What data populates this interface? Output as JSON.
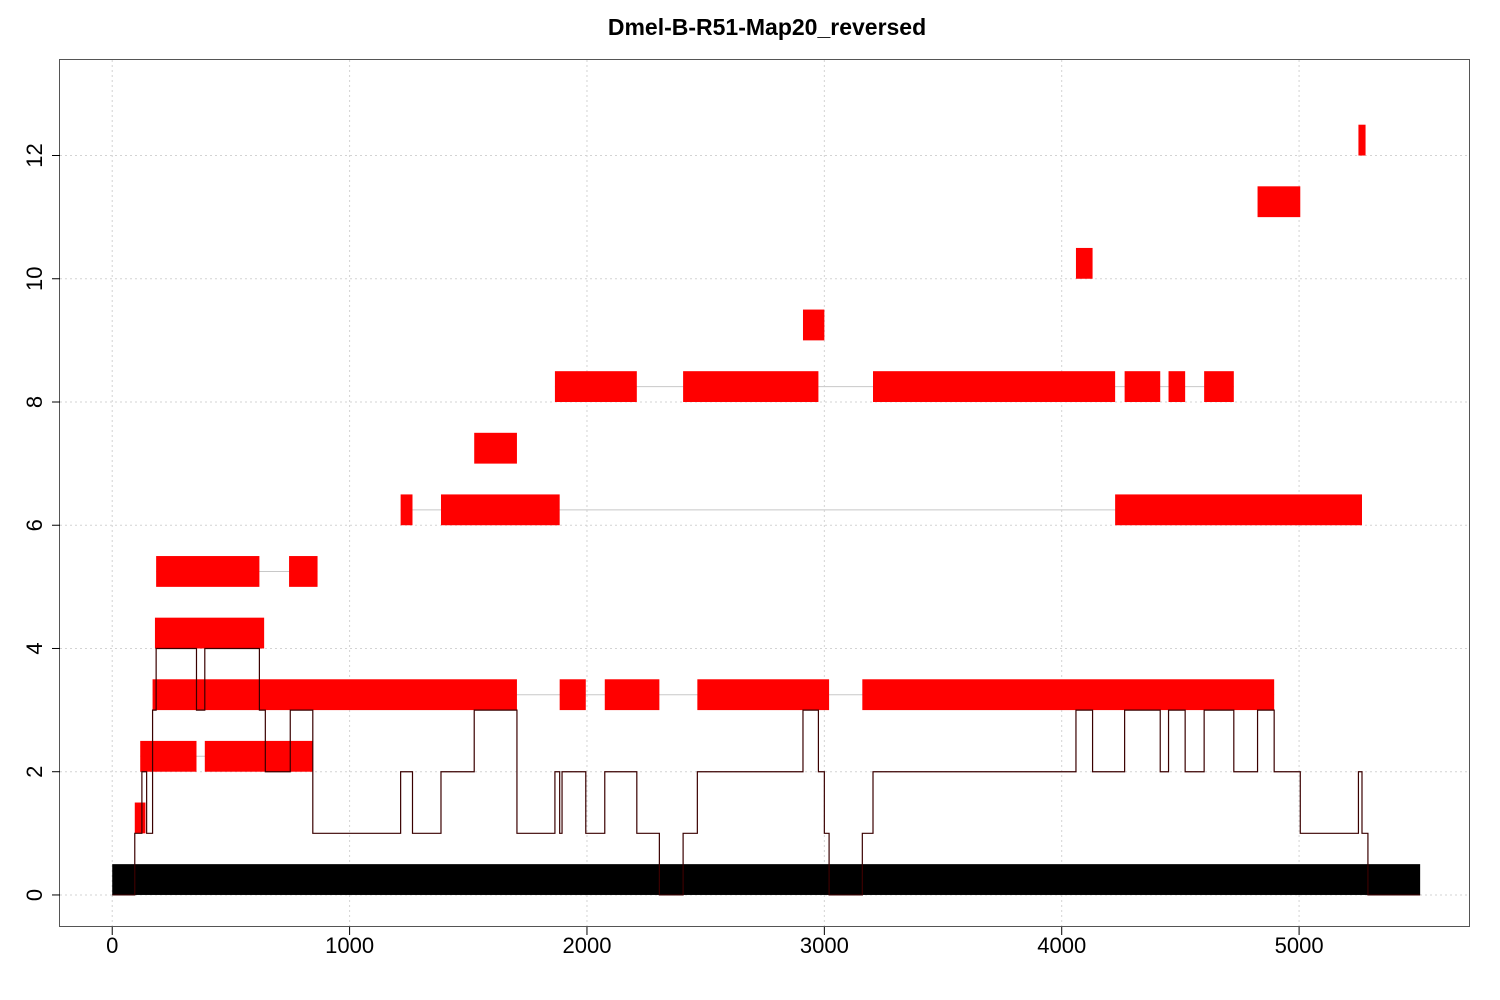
{
  "chart_data": {
    "type": "bar",
    "title": "Dmel-B-R51-Map20_reversed",
    "xlabel": "",
    "ylabel": "",
    "xlim": [
      -220,
      5720
    ],
    "ylim": [
      -0.52,
      13.55
    ],
    "x_ticks": [
      0,
      1000,
      2000,
      3000,
      4000,
      5000
    ],
    "y_ticks": [
      0,
      2,
      4,
      6,
      8,
      10,
      12
    ],
    "grid": true,
    "colors": {
      "segments": "#ff0000",
      "baseline": "#000000",
      "coverage": "#3a0000",
      "grid": "#d3d3d3",
      "connector": "#c8c8c8"
    },
    "baseline": {
      "x0": 0,
      "x1": 5510,
      "y": 0
    },
    "rows": [
      {
        "y": 1,
        "segments": [
          [
            95,
            140
          ]
        ]
      },
      {
        "y": 2,
        "segments": [
          [
            118,
            355
          ],
          [
            390,
            845
          ]
        ]
      },
      {
        "y": 3,
        "segments": [
          [
            170,
            1705
          ],
          [
            1885,
            1995
          ],
          [
            2075,
            2305
          ],
          [
            2465,
            3020
          ],
          [
            3160,
            4895
          ]
        ]
      },
      {
        "y": 4,
        "segments": [
          [
            180,
            640
          ]
        ]
      },
      {
        "y": 5,
        "segments": [
          [
            185,
            620
          ],
          [
            745,
            865
          ]
        ]
      },
      {
        "y": 6,
        "segments": [
          [
            1215,
            1265
          ],
          [
            1385,
            1885
          ],
          [
            4225,
            5265
          ]
        ]
      },
      {
        "y": 7,
        "segments": [
          [
            1525,
            1705
          ]
        ]
      },
      {
        "y": 8,
        "segments": [
          [
            1865,
            2210
          ],
          [
            2405,
            2975
          ],
          [
            3205,
            4225
          ],
          [
            4265,
            4415
          ],
          [
            4450,
            4520
          ],
          [
            4600,
            4725
          ]
        ]
      },
      {
        "y": 9,
        "segments": [
          [
            2910,
            3000
          ]
        ]
      },
      {
        "y": 10,
        "segments": [
          [
            4060,
            4130
          ]
        ]
      },
      {
        "y": 11,
        "segments": [
          [
            4825,
            5005
          ]
        ]
      },
      {
        "y": 12,
        "segments": [
          [
            5250,
            5280
          ]
        ]
      }
    ],
    "coverage": [
      [
        0,
        0
      ],
      [
        95,
        1
      ],
      [
        125,
        2
      ],
      [
        145,
        1
      ],
      [
        170,
        3
      ],
      [
        185,
        4
      ],
      [
        355,
        3
      ],
      [
        390,
        4
      ],
      [
        620,
        3
      ],
      [
        645,
        2
      ],
      [
        750,
        3
      ],
      [
        845,
        1
      ],
      [
        1215,
        2
      ],
      [
        1265,
        1
      ],
      [
        1385,
        2
      ],
      [
        1525,
        3
      ],
      [
        1705,
        1
      ],
      [
        1865,
        2
      ],
      [
        1885,
        1
      ],
      [
        1895,
        2
      ],
      [
        1995,
        1
      ],
      [
        2075,
        2
      ],
      [
        2210,
        1
      ],
      [
        2305,
        0
      ],
      [
        2405,
        1
      ],
      [
        2465,
        2
      ],
      [
        2910,
        3
      ],
      [
        2975,
        2
      ],
      [
        3000,
        1
      ],
      [
        3020,
        0
      ],
      [
        3160,
        1
      ],
      [
        3205,
        2
      ],
      [
        4060,
        3
      ],
      [
        4130,
        2
      ],
      [
        4265,
        3
      ],
      [
        4415,
        2
      ],
      [
        4450,
        3
      ],
      [
        4520,
        2
      ],
      [
        4600,
        3
      ],
      [
        4725,
        2
      ],
      [
        4825,
        3
      ],
      [
        4895,
        2
      ],
      [
        5005,
        1
      ],
      [
        5250,
        2
      ],
      [
        5265,
        1
      ],
      [
        5290,
        0
      ]
    ]
  }
}
